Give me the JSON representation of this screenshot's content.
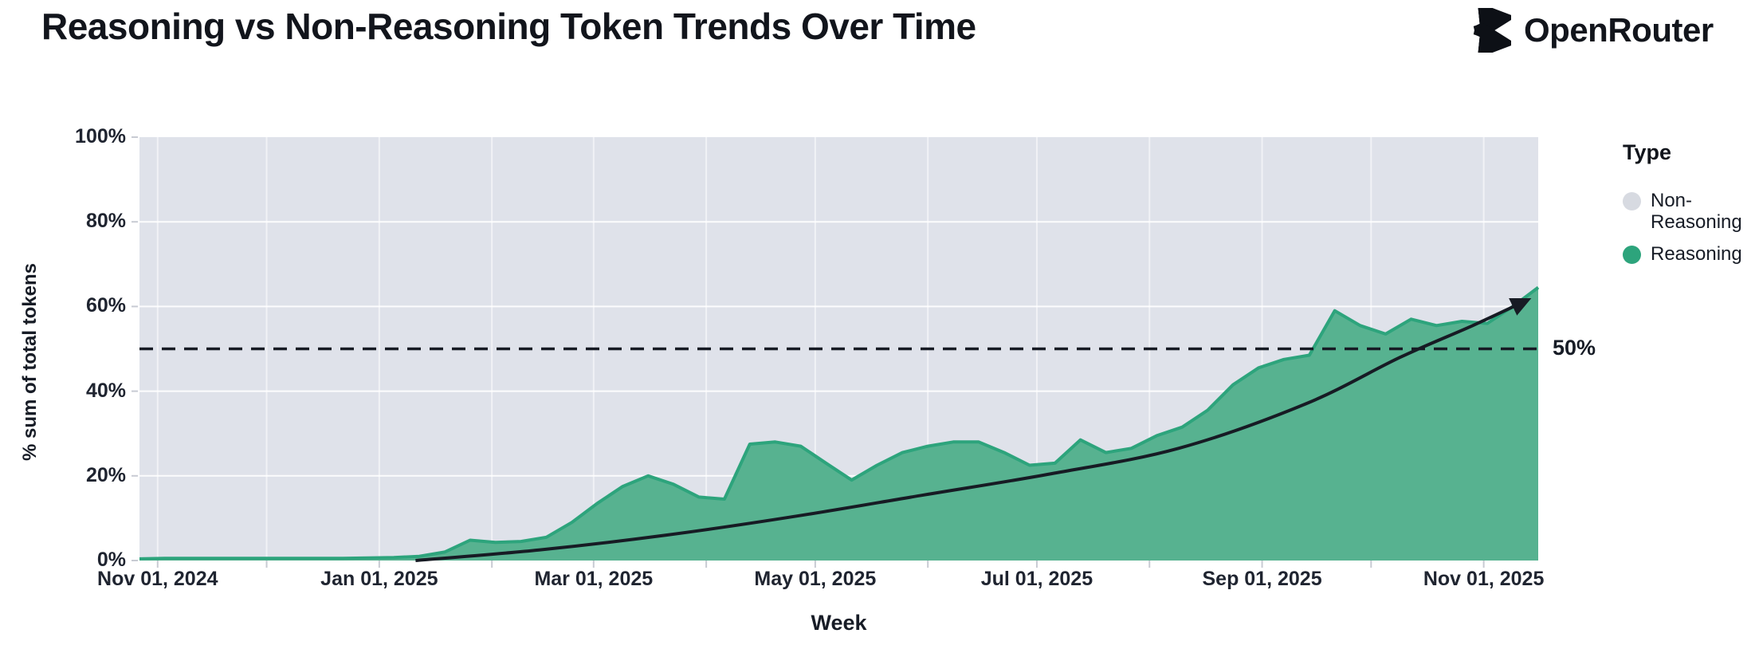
{
  "header": {
    "title": "Reasoning vs Non-Reasoning Token Trends Over Time",
    "brand": "OpenRouter"
  },
  "colors": {
    "page_bg": "#ffffff",
    "text": "#12151c",
    "axis_text": "#1f2430",
    "plot_bg": "#dfe2ea",
    "area_fill": "#57b290",
    "area_stroke": "#2da47c",
    "non_reasoning": "#d7dae1",
    "annotation": "#171b24",
    "tick_mark": "#c8cbd3",
    "grid_h": "rgba(255,255,255,0.9)",
    "grid_v": "rgba(255,255,255,0.55)"
  },
  "chart_data": {
    "type": "area",
    "percent_stacked": true,
    "title": "Reasoning vs Non-Reasoning Token Trends Over Time",
    "xlabel": "Week",
    "ylabel": "% sum of total tokens",
    "ylim": [
      0,
      100
    ],
    "grid": true,
    "y_ticks": [
      {
        "value": 0,
        "label": "0%"
      },
      {
        "value": 20,
        "label": "20%"
      },
      {
        "value": 40,
        "label": "40%"
      },
      {
        "value": 60,
        "label": "60%"
      },
      {
        "value": 80,
        "label": "80%"
      },
      {
        "value": 100,
        "label": "100%"
      }
    ],
    "x_ticks": [
      {
        "date": "2024-11-01",
        "label": "Nov 01, 2024"
      },
      {
        "date": "2025-01-01",
        "label": "Jan 01, 2025"
      },
      {
        "date": "2025-03-01",
        "label": "Mar 01, 2025"
      },
      {
        "date": "2025-05-01",
        "label": "May 01, 2025"
      },
      {
        "date": "2025-07-01",
        "label": "Jul 01, 2025"
      },
      {
        "date": "2025-09-01",
        "label": "Sep 01, 2025"
      },
      {
        "date": "2025-11-01",
        "label": "Nov 01, 2025"
      }
    ],
    "x_minor_ticks": [
      "2024-11-01",
      "2024-12-01",
      "2025-01-01",
      "2025-02-01",
      "2025-03-01",
      "2025-04-01",
      "2025-05-01",
      "2025-06-01",
      "2025-07-01",
      "2025-08-01",
      "2025-09-01",
      "2025-10-01",
      "2025-11-01"
    ],
    "legend": {
      "position": "right",
      "title": "Type",
      "items": [
        {
          "label": "Non-Reasoning",
          "color": "#d7dae1"
        },
        {
          "label": "Reasoning",
          "color": "#2da47c"
        }
      ]
    },
    "series": [
      {
        "name": "Reasoning",
        "unit": "% of total tokens",
        "x": [
          "2024-10-27",
          "2024-11-03",
          "2024-11-10",
          "2024-11-17",
          "2024-11-24",
          "2024-12-01",
          "2024-12-08",
          "2024-12-15",
          "2024-12-22",
          "2024-12-29",
          "2025-01-05",
          "2025-01-12",
          "2025-01-19",
          "2025-01-26",
          "2025-02-02",
          "2025-02-09",
          "2025-02-16",
          "2025-02-23",
          "2025-03-02",
          "2025-03-09",
          "2025-03-16",
          "2025-03-23",
          "2025-03-30",
          "2025-04-06",
          "2025-04-13",
          "2025-04-20",
          "2025-04-27",
          "2025-05-04",
          "2025-05-11",
          "2025-05-18",
          "2025-05-25",
          "2025-06-01",
          "2025-06-08",
          "2025-06-15",
          "2025-06-22",
          "2025-06-29",
          "2025-07-06",
          "2025-07-13",
          "2025-07-20",
          "2025-07-27",
          "2025-08-03",
          "2025-08-10",
          "2025-08-17",
          "2025-08-24",
          "2025-08-31",
          "2025-09-07",
          "2025-09-14",
          "2025-09-21",
          "2025-09-28",
          "2025-10-05",
          "2025-10-12",
          "2025-10-19",
          "2025-10-26",
          "2025-11-02",
          "2025-11-09",
          "2025-11-16"
        ],
        "values": [
          0.4,
          0.5,
          0.5,
          0.5,
          0.5,
          0.5,
          0.5,
          0.5,
          0.5,
          0.6,
          0.7,
          1.0,
          2.0,
          4.8,
          4.3,
          4.5,
          5.5,
          9.0,
          13.5,
          17.5,
          20.0,
          18.0,
          15.0,
          14.5,
          27.5,
          28.0,
          27.0,
          23.0,
          19.0,
          22.5,
          25.5,
          27.0,
          28.0,
          28.0,
          25.5,
          22.5,
          23.0,
          28.5,
          25.5,
          26.5,
          29.5,
          31.5,
          35.5,
          41.5,
          45.5,
          47.5,
          48.5,
          59.0,
          55.5,
          53.5,
          57.0,
          55.5,
          56.5,
          56.0,
          60.0,
          64.5
        ]
      },
      {
        "name": "Non-Reasoning",
        "derived": "100 minus Reasoning (fills remainder of 100% stacked area)"
      }
    ],
    "annotations": {
      "hline": {
        "value": 50,
        "label": "50%",
        "style": "dashed"
      },
      "trend_arrow": {
        "description": "black curved arrow showing exponential growth of reasoning share",
        "points": [
          {
            "date": "2025-01-11",
            "value": 0
          },
          {
            "date": "2025-02-14",
            "value": 2.5
          },
          {
            "date": "2025-03-21",
            "value": 6
          },
          {
            "date": "2025-04-26",
            "value": 10.5
          },
          {
            "date": "2025-05-31",
            "value": 15.5
          },
          {
            "date": "2025-07-05",
            "value": 20.5
          },
          {
            "date": "2025-08-09",
            "value": 26.5
          },
          {
            "date": "2025-09-13",
            "value": 37
          },
          {
            "date": "2025-10-09",
            "value": 48
          },
          {
            "date": "2025-10-29",
            "value": 55.5
          },
          {
            "date": "2025-11-13",
            "value": 61.5
          }
        ]
      }
    }
  }
}
